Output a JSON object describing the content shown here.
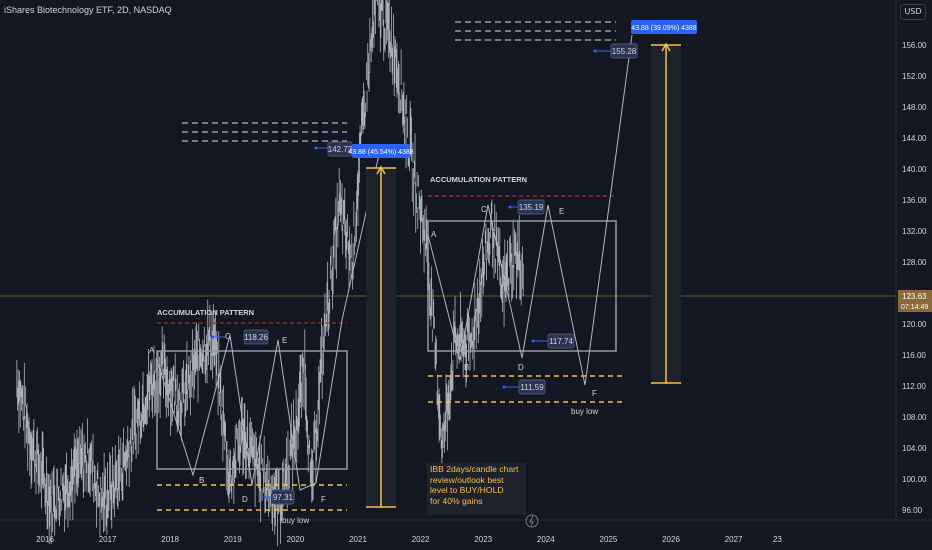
{
  "header": {
    "title": "iShares Biotechnology ETF, 2D, NASDAQ",
    "currency": "USD"
  },
  "price_axis": {
    "ticks": [
      "156.00",
      "152.00",
      "148.00",
      "144.00",
      "140.00",
      "136.00",
      "132.00",
      "128.00",
      "124.00",
      "120.00",
      "116.00",
      "112.00",
      "108.00",
      "104.00",
      "100.00",
      "96.00"
    ],
    "current_price": "123.63",
    "countdown": "07:14:49"
  },
  "time_axis": {
    "ticks": [
      "2016",
      "2017",
      "2018",
      "2019",
      "2020",
      "2021",
      "2022",
      "2023",
      "2024",
      "2025",
      "2026",
      "2027",
      "23"
    ]
  },
  "annotations": {
    "pattern1": {
      "title": "ACCUMULATION PATTERN",
      "A": "A",
      "B": "B",
      "C": "C",
      "D": "D",
      "E": "E",
      "F": "F",
      "buy": "buy low",
      "c_price": "118.26",
      "d_price": "97.31",
      "target_price": "142.73",
      "proj": "43.88 (45.54%) 4388"
    },
    "pattern2": {
      "title": "ACCUMULATION PATTERN",
      "A": "A",
      "B": "B",
      "C": "C",
      "D": "D",
      "E": "E",
      "F": "F",
      "buy": "buy low",
      "c_price": "135.19",
      "d_price": "117.74",
      "f_price": "111.59",
      "target_price": "155.28",
      "proj": "43.88 (39.09%) 4388"
    },
    "note": [
      "IBB 2days/candle chart",
      "review/outlook best",
      "level to BUY/HOLD",
      "for 40% gains"
    ]
  },
  "colors": {
    "background": "#131722",
    "candle": "#b2b5be",
    "gold": "#f5c242",
    "red_dash": "#b2252b",
    "box": "#9598a1",
    "label_bg": "#2962ff",
    "bubble": "#2a3553"
  },
  "chart_data": {
    "type": "line",
    "title": "iShares Biotechnology ETF, 2D, NASDAQ",
    "ylim": [
      94,
      160
    ],
    "x_ticks": [
      "2016",
      "2017",
      "2018",
      "2019",
      "2020",
      "2021",
      "2022",
      "2023",
      "2024",
      "2025",
      "2026",
      "2027"
    ],
    "series": [
      {
        "values": [
          [
            2015.55,
            113
          ],
          [
            2015.8,
            104
          ],
          [
            2016.1,
            97
          ],
          [
            2016.4,
            100
          ],
          [
            2016.7,
            103
          ],
          [
            2016.9,
            97
          ],
          [
            2017.1,
            99
          ],
          [
            2017.3,
            103
          ],
          [
            2017.6,
            111
          ],
          [
            2017.85,
            114
          ],
          [
            2018.2,
            110
          ],
          [
            2018.5,
            117
          ],
          [
            2018.7,
            118
          ],
          [
            2018.95,
            100
          ],
          [
            2019.15,
            106
          ],
          [
            2019.4,
            101
          ],
          [
            2019.75,
            97
          ],
          [
            2020.0,
            106
          ],
          [
            2020.15,
            115
          ],
          [
            2020.25,
            98
          ],
          [
            2020.45,
            118
          ],
          [
            2020.7,
            135
          ],
          [
            2020.9,
            128
          ],
          [
            2021.1,
            148
          ],
          [
            2021.3,
            162
          ],
          [
            2021.6,
            155
          ],
          [
            2021.9,
            139
          ],
          [
            2022.1,
            130
          ],
          [
            2022.35,
            104
          ],
          [
            2022.55,
            118
          ],
          [
            2022.8,
            117
          ],
          [
            2023.0,
            127
          ],
          [
            2023.15,
            133
          ],
          [
            2023.3,
            124
          ],
          [
            2023.5,
            129
          ],
          [
            2023.65,
            127
          ]
        ]
      }
    ],
    "levels": [
      {
        "name": "buy low zone 1",
        "values": [
          96,
          98.5
        ]
      },
      {
        "name": "buy low zone 2",
        "values": [
          109.8,
          113.2
        ]
      },
      {
        "name": "resistance 1",
        "values": [
          119.9
        ]
      },
      {
        "name": "resistance 2",
        "values": [
          136.4
        ]
      },
      {
        "name": "target 1",
        "values": [
          142.8,
          144.2,
          145.5
        ]
      },
      {
        "name": "target 2",
        "values": [
          155.3,
          156.6,
          157.8
        ]
      }
    ]
  }
}
